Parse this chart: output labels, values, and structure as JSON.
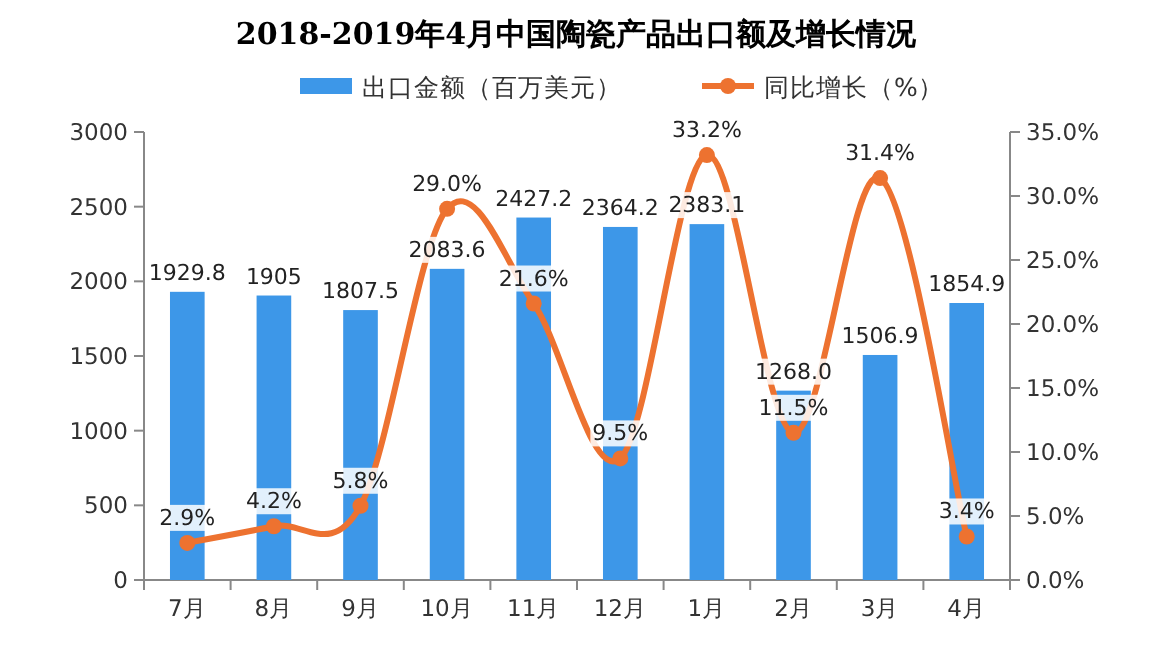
{
  "chart_data": {
    "type": "bar",
    "title": "2018-2019年4月中国陶瓷产品出口额及增长情况",
    "categories": [
      "7月",
      "8月",
      "9月",
      "10月",
      "11月",
      "12月",
      "1月",
      "2月",
      "3月",
      "4月"
    ],
    "series": [
      {
        "name": "出口金额（百万美元）",
        "color": "#3d97e8",
        "values": [
          1929.8,
          1905,
          1807.5,
          2083.6,
          2427.2,
          2364.2,
          2383.1,
          1268.0,
          1506.9,
          1854.9
        ],
        "value_labels": [
          "1929.8",
          "1905",
          "1807.5",
          "2083.6",
          "2427.2",
          "2364.2",
          "2383.1",
          "1268.0",
          "1506.9",
          "1854.9"
        ]
      },
      {
        "name": "同比增长（%）",
        "type": "line",
        "axis": "y2",
        "color": "#ed7230",
        "marker": "circle",
        "values": [
          2.9,
          4.2,
          5.8,
          29.0,
          21.6,
          9.5,
          33.2,
          11.5,
          31.4,
          3.4
        ],
        "value_labels": [
          "2.9%",
          "4.2%",
          "5.8%",
          "29.0%",
          "21.6%",
          "9.5%",
          "33.2%",
          "11.5%",
          "31.4%",
          "3.4%"
        ]
      }
    ],
    "ylim": [
      0,
      3000
    ],
    "yticks": [
      0,
      500,
      1000,
      1500,
      2000,
      2500,
      3000
    ],
    "y2lim": [
      0,
      35
    ],
    "y2ticks": [
      {
        "value": 0,
        "label": "0.0%"
      },
      {
        "value": 5,
        "label": "5.0%"
      },
      {
        "value": 10,
        "label": "10.0%"
      },
      {
        "value": 15,
        "label": "15.0%"
      },
      {
        "value": 20,
        "label": "20.0%"
      },
      {
        "value": 25,
        "label": "25.0%"
      },
      {
        "value": 30,
        "label": "30.0%"
      },
      {
        "value": 35,
        "label": "35.0%"
      }
    ],
    "legend": "top",
    "grid": false
  }
}
